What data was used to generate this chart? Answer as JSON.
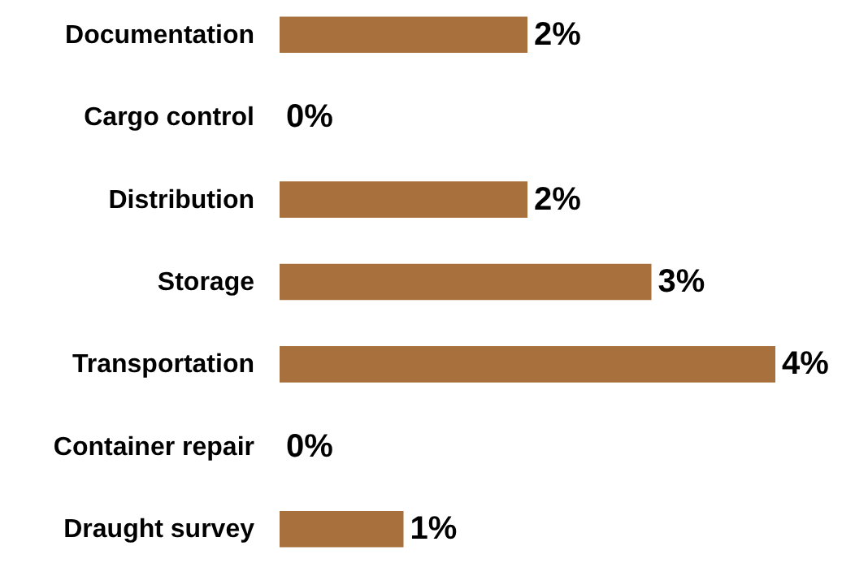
{
  "chart_data": {
    "type": "bar",
    "orientation": "horizontal",
    "categories": [
      "Documentation",
      "Cargo control",
      "Distribution",
      "Storage",
      "Transportation",
      "Container repair",
      "Draught survey"
    ],
    "values": [
      2,
      0,
      2,
      3,
      4,
      0,
      1
    ],
    "value_labels": [
      "2%",
      "0%",
      "2%",
      "3%",
      "4%",
      "0%",
      "1%"
    ],
    "color": "#a8703c",
    "grid": false
  }
}
